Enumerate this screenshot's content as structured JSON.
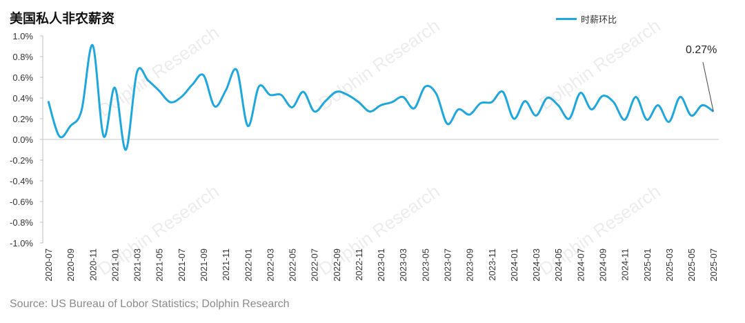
{
  "title": "美国私人非农薪资",
  "source": "Source: US Bureau of Lobor Statistics; Dolphin Research",
  "watermark": "Dolphin Research",
  "chart_data": {
    "type": "line",
    "title": "美国私人非农薪资",
    "xlabel": "",
    "ylabel": "",
    "ylim": [
      -1.0,
      1.0
    ],
    "yticks": [
      "-1.0%",
      "-0.8%",
      "-0.6%",
      "-0.4%",
      "-0.2%",
      "0.0%",
      "0.2%",
      "0.4%",
      "0.6%",
      "0.8%",
      "1.0%"
    ],
    "grid": "zero-line only",
    "legend_position": "top-right",
    "x": [
      "2020-07",
      "2020-08",
      "2020-09",
      "2020-10",
      "2020-11",
      "2020-12",
      "2021-01",
      "2021-02",
      "2021-03",
      "2021-04",
      "2021-05",
      "2021-06",
      "2021-07",
      "2021-08",
      "2021-09",
      "2021-10",
      "2021-11",
      "2021-12",
      "2022-01",
      "2022-02",
      "2022-03",
      "2022-04",
      "2022-05",
      "2022-06",
      "2022-07",
      "2022-08",
      "2022-09",
      "2022-10",
      "2022-11",
      "2022-12",
      "2023-01",
      "2023-02",
      "2023-03",
      "2023-04",
      "2023-05",
      "2023-06",
      "2023-07",
      "2023-08",
      "2023-09",
      "2023-10",
      "2023-11",
      "2023-12",
      "2024-01",
      "2024-02",
      "2024-03",
      "2024-04",
      "2024-05",
      "2024-06",
      "2024-07",
      "2024-08",
      "2024-09",
      "2024-10",
      "2024-11",
      "2024-12",
      "2025-01",
      "2025-02",
      "2025-03",
      "2025-04",
      "2025-05",
      "2025-06",
      "2025-07"
    ],
    "series": [
      {
        "name": "时薪环比",
        "color": "#1ea7de",
        "values": [
          0.37,
          0.03,
          0.13,
          0.28,
          0.91,
          0.03,
          0.5,
          -0.1,
          0.65,
          0.57,
          0.47,
          0.36,
          0.41,
          0.53,
          0.62,
          0.32,
          0.47,
          0.67,
          0.13,
          0.51,
          0.43,
          0.43,
          0.31,
          0.46,
          0.27,
          0.37,
          0.46,
          0.43,
          0.36,
          0.27,
          0.33,
          0.36,
          0.41,
          0.3,
          0.51,
          0.44,
          0.15,
          0.29,
          0.24,
          0.35,
          0.36,
          0.46,
          0.2,
          0.37,
          0.23,
          0.4,
          0.33,
          0.2,
          0.45,
          0.29,
          0.42,
          0.36,
          0.19,
          0.41,
          0.19,
          0.33,
          0.17,
          0.41,
          0.23,
          0.33,
          0.27
        ]
      }
    ],
    "annotations": [
      {
        "x": "2025-07",
        "text": "0.27%"
      }
    ]
  }
}
